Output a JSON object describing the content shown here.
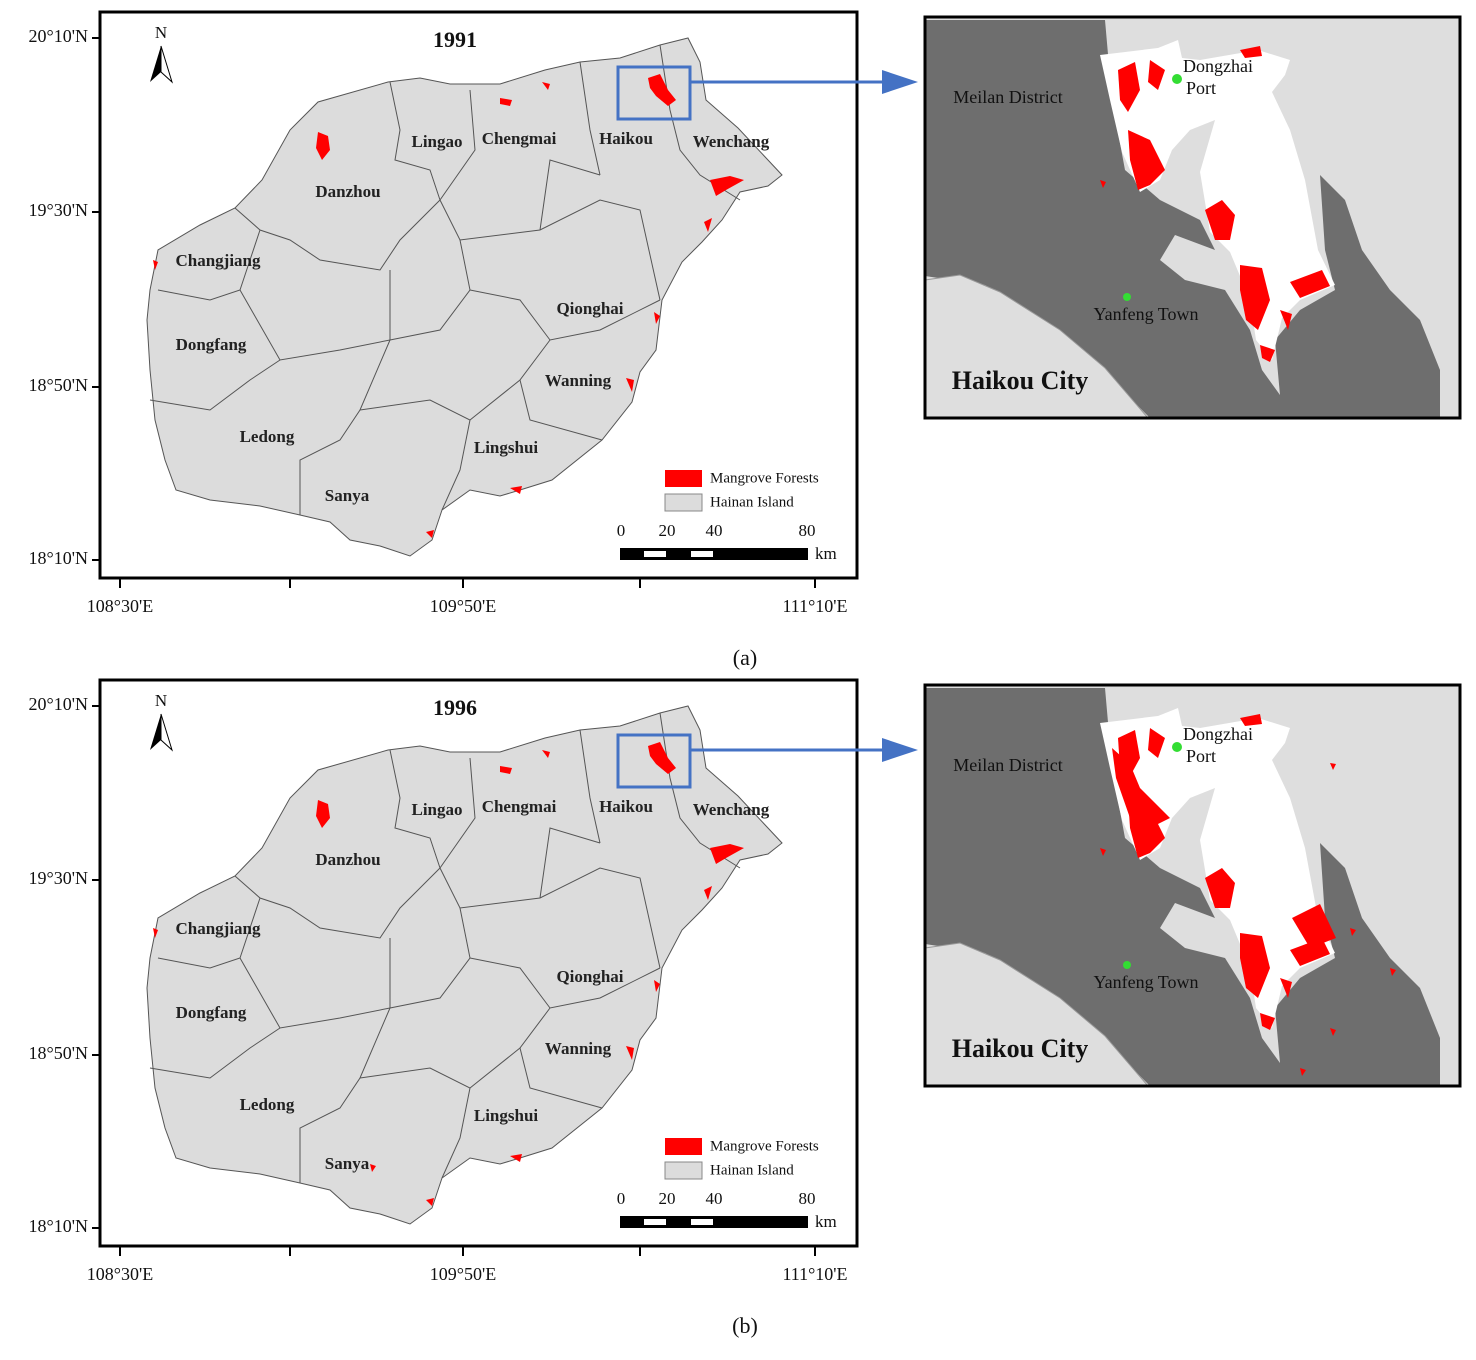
{
  "panels": [
    {
      "year": "1991",
      "north": "N",
      "lat_labels": [
        "20°10'N",
        "19°30'N",
        "18°50'N",
        "18°10'N"
      ],
      "lon_labels": [
        "108°30'E",
        "109°50'E",
        "111°10'E"
      ],
      "districts": [
        "Lingao",
        "Chengmai",
        "Haikou",
        "Wenchang",
        "Danzhou",
        "Changjiang",
        "Qionghai",
        "Dongfang",
        "Wanning",
        "Ledong",
        "Lingshui",
        "Sanya"
      ],
      "legend": [
        "Mangrove Forests",
        "Hainan Island"
      ],
      "scale": [
        "0",
        "20",
        "40",
        "80"
      ],
      "scale_unit": "km",
      "inset": {
        "meilan": "Meilan District",
        "port": [
          "Dongzhai",
          "Port"
        ],
        "town": "Yanfeng Town",
        "city": "Haikou City"
      },
      "caption": "(a)"
    },
    {
      "year": "1996",
      "north": "N",
      "lat_labels": [
        "20°10'N",
        "19°30'N",
        "18°50'N",
        "18°10'N"
      ],
      "lon_labels": [
        "108°30'E",
        "109°50'E",
        "111°10'E"
      ],
      "districts": [
        "Lingao",
        "Chengmai",
        "Haikou",
        "Wenchang",
        "Danzhou",
        "Changjiang",
        "Qionghai",
        "Dongfang",
        "Wanning",
        "Ledong",
        "Lingshui",
        "Sanya"
      ],
      "legend": [
        "Mangrove Forests",
        "Hainan Island"
      ],
      "scale": [
        "0",
        "20",
        "40",
        "80"
      ],
      "scale_unit": "km",
      "inset": {
        "meilan": "Meilan District",
        "port": [
          "Dongzhai",
          "Port"
        ],
        "town": "Yanfeng Town",
        "city": "Haikou City"
      },
      "caption": "(b)"
    }
  ]
}
